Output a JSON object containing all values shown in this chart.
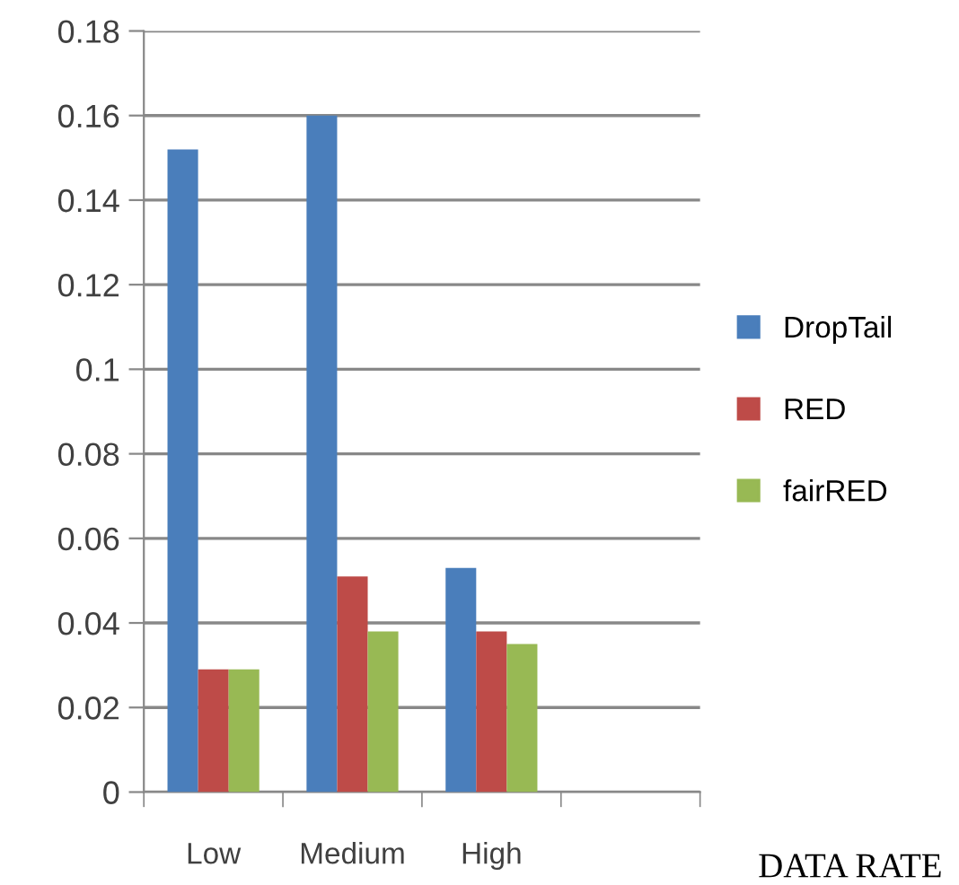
{
  "chart_data": {
    "type": "bar",
    "xlabel": "DATA RATE",
    "categories": [
      "Low",
      "Medium",
      "High",
      null
    ],
    "series": [
      {
        "name": "DropTail",
        "color": "#4a7ebb",
        "values": [
          0.152,
          0.16,
          0.053,
          null
        ]
      },
      {
        "name": "RED",
        "color": "#be4b48",
        "values": [
          0.029,
          0.051,
          0.038,
          null
        ]
      },
      {
        "name": "fairRED",
        "color": "#98b954",
        "values": [
          0.029,
          0.038,
          0.035,
          null
        ]
      }
    ],
    "ylim": [
      0,
      0.18
    ],
    "yticks": [
      0,
      0.02,
      0.04,
      0.06,
      0.08,
      0.1,
      0.12,
      0.14,
      0.16,
      0.18
    ],
    "grid": "y",
    "legend": "right"
  }
}
